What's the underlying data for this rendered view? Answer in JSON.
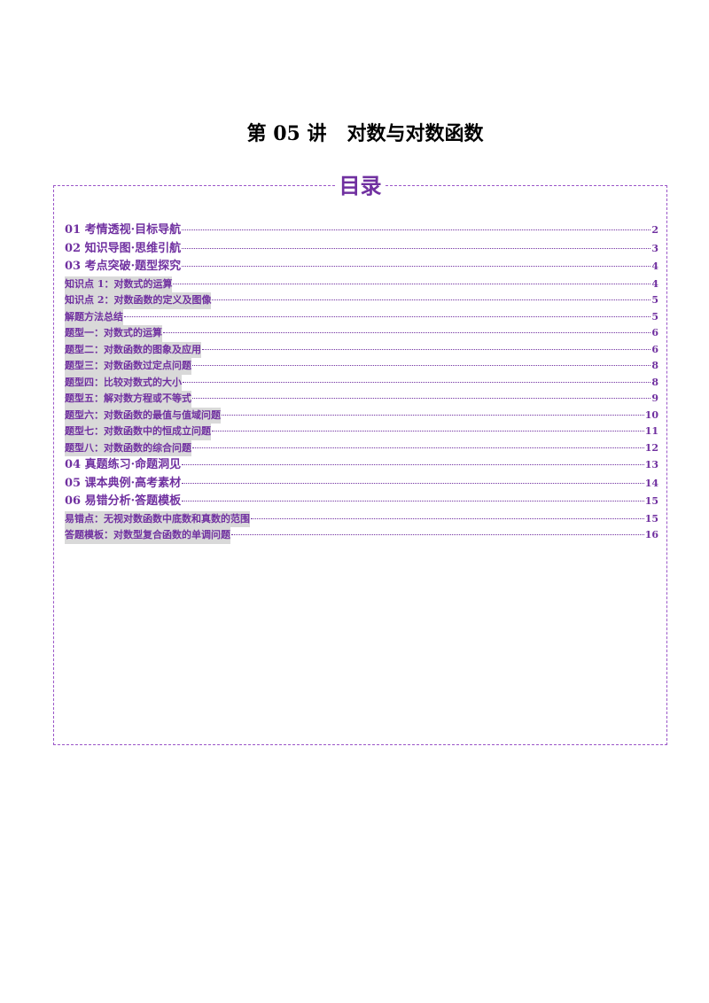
{
  "document": {
    "title": "第 05 讲   对数与对数函数"
  },
  "toc": {
    "heading": "目录",
    "entries": [
      {
        "label": "01 考情透视·目标导航",
        "page": "2",
        "level": 1
      },
      {
        "label": "02 知识导图·思维引航",
        "page": "3",
        "level": 1
      },
      {
        "label": "03 考点突破·题型探究",
        "page": "4",
        "level": 1
      },
      {
        "label": "知识点 1：对数式的运算",
        "page": "4",
        "level": 2
      },
      {
        "label": "知识点 2：对数函数的定义及图像",
        "page": "5",
        "level": 2
      },
      {
        "label": "解题方法总结",
        "page": "5",
        "level": 2
      },
      {
        "label": "题型一：对数式的运算",
        "page": "6",
        "level": 2
      },
      {
        "label": "题型二：对数函数的图象及应用",
        "page": "6",
        "level": 2
      },
      {
        "label": "题型三：对数函数过定点问题",
        "page": "8",
        "level": 2
      },
      {
        "label": "题型四：比较对数式的大小",
        "page": "8",
        "level": 2
      },
      {
        "label": "题型五：解对数方程或不等式",
        "page": "9",
        "level": 2
      },
      {
        "label": "题型六：对数函数的最值与值域问题",
        "page": "10",
        "level": 2
      },
      {
        "label": "题型七：对数函数中的恒成立问题",
        "page": "11",
        "level": 2
      },
      {
        "label": "题型八：对数函数的综合问题",
        "page": "12",
        "level": 2
      },
      {
        "label": "04 真题练习·命题洞见",
        "page": "13",
        "level": 1
      },
      {
        "label": "05 课本典例·高考素材",
        "page": "14",
        "level": 1
      },
      {
        "label": "06 易错分析·答题模板",
        "page": "15",
        "level": 1
      },
      {
        "label": "易错点：无视对数函数中底数和真数的范围",
        "page": "15",
        "level": 2
      },
      {
        "label": "答题模板：对数型复合函数的单调问题",
        "page": "16",
        "level": 2
      }
    ]
  }
}
